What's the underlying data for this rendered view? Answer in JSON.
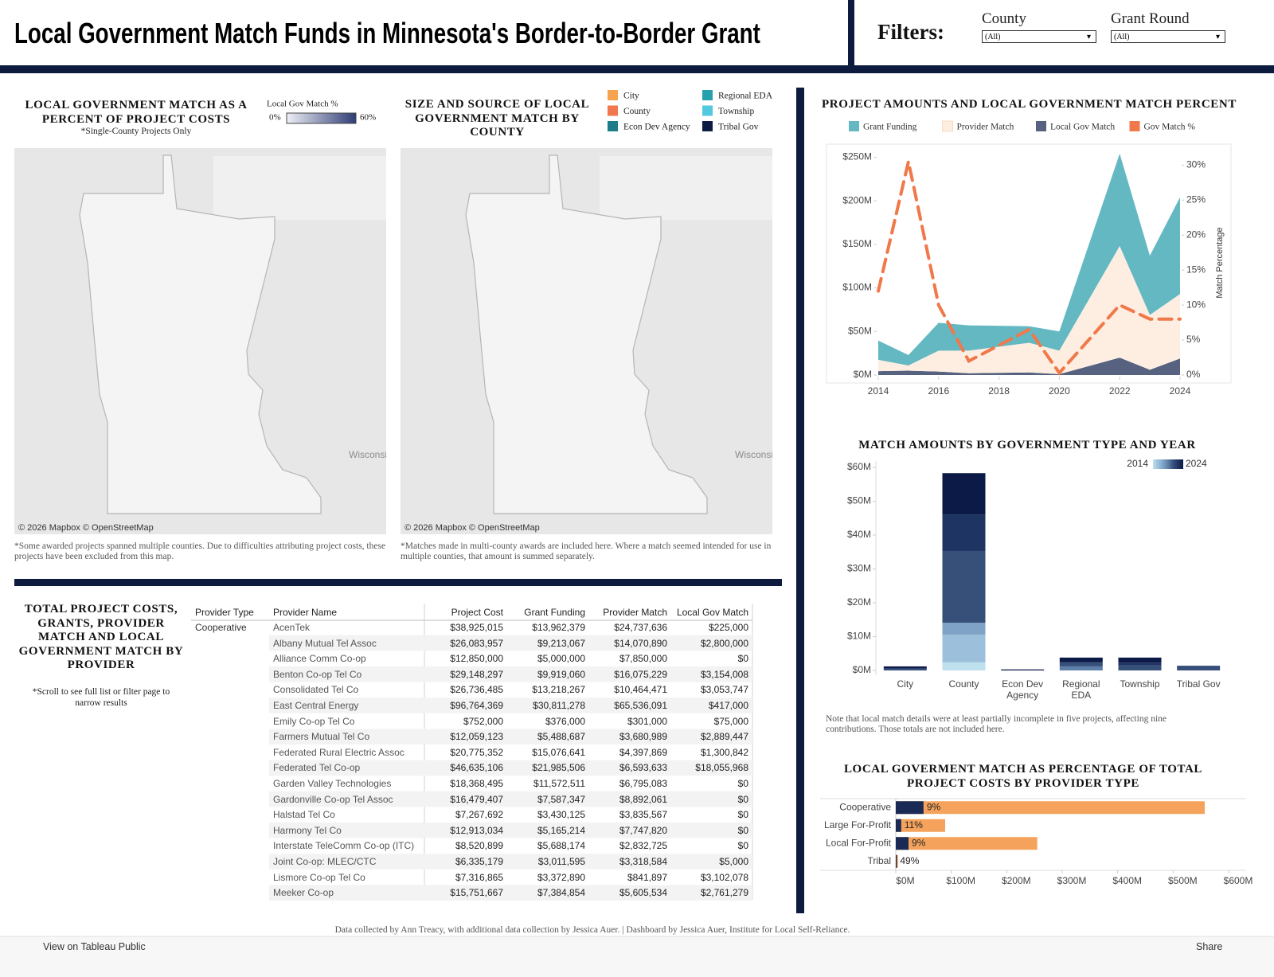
{
  "header": {
    "title": "Local Government Match Funds in Minnesota's Border-to-Border Grant",
    "filters_label": "Filters:",
    "filters": [
      {
        "label": "County",
        "value": "(All)"
      },
      {
        "label": "Grant Round",
        "value": "(All)"
      }
    ]
  },
  "maps": [
    {
      "title": "LOCAL GOVERNMENT MATCH AS A PERCENT OF PROJECT COSTS",
      "subtitle": "*Single-County Projects Only",
      "legend_title": "Local Gov Match %",
      "legend_min": "0%",
      "legend_max": "60%",
      "legend_colors": [
        "#eef0f6",
        "#2e3d76"
      ],
      "attribution": "© 2026 Mapbox © OpenStreetMap",
      "place_label": "Wisconsin",
      "note": "*Some awarded projects spanned multiple counties. Due to difficulties attributing project costs, these projects have been excluded from this map."
    },
    {
      "title": "SIZE AND SOURCE OF LOCAL GOVERNMENT MATCH BY COUNTY",
      "legend": [
        {
          "name": "City",
          "color": "#f7a24f"
        },
        {
          "name": "County",
          "color": "#f1784c"
        },
        {
          "name": "Econ Dev Agency",
          "color": "#1e7b8a"
        },
        {
          "name": "Regional EDA",
          "color": "#27a0ad"
        },
        {
          "name": "Township",
          "color": "#52c9e0"
        },
        {
          "name": "Tribal Gov",
          "color": "#0d1c44"
        }
      ],
      "attribution": "© 2026 Mapbox © OpenStreetMap",
      "place_label": "Wisconsin",
      "note": "*Matches made in multi-county awards are included here. Where a match seemed intended for use in multiple counties, that amount is summed separately."
    }
  ],
  "table": {
    "title": "TOTAL PROJECT COSTS, GRANTS, PROVIDER MATCH AND LOCAL GOVERNMENT MATCH BY PROVIDER",
    "note": "*Scroll to see full list or filter page to narrow results",
    "columns": [
      "Provider Type",
      "Provider Name",
      "Project Cost",
      "Grant Funding",
      "Provider Match",
      "Local Gov Match"
    ],
    "groups": [
      {
        "type": "Cooperative",
        "rows": [
          [
            "AcenTek",
            "$38,925,015",
            "$13,962,379",
            "$24,737,636",
            "$225,000"
          ],
          [
            "Albany Mutual Tel Assoc",
            "$26,083,957",
            "$9,213,067",
            "$14,070,890",
            "$2,800,000"
          ],
          [
            "Alliance Comm Co-op",
            "$12,850,000",
            "$5,000,000",
            "$7,850,000",
            "$0"
          ],
          [
            "Benton Co-op Tel Co",
            "$29,148,297",
            "$9,919,060",
            "$16,075,229",
            "$3,154,008"
          ],
          [
            "Consolidated Tel Co",
            "$26,736,485",
            "$13,218,267",
            "$10,464,471",
            "$3,053,747"
          ],
          [
            "East Central Energy",
            "$96,764,369",
            "$30,811,278",
            "$65,536,091",
            "$417,000"
          ],
          [
            "Emily Co-op Tel Co",
            "$752,000",
            "$376,000",
            "$301,000",
            "$75,000"
          ],
          [
            "Farmers Mutual Tel Co",
            "$12,059,123",
            "$5,488,687",
            "$3,680,989",
            "$2,889,447"
          ],
          [
            "Federated Rural Electric Assoc",
            "$20,775,352",
            "$15,076,641",
            "$4,397,869",
            "$1,300,842"
          ],
          [
            "Federated Tel Co-op",
            "$46,635,106",
            "$21,985,506",
            "$6,593,633",
            "$18,055,968"
          ],
          [
            "Garden Valley Technologies",
            "$18,368,495",
            "$11,572,511",
            "$6,795,083",
            "$0"
          ],
          [
            "Gardonville Co-op Tel Assoc",
            "$16,479,407",
            "$7,587,347",
            "$8,892,061",
            "$0"
          ],
          [
            "Halstad Tel Co",
            "$7,267,692",
            "$3,430,125",
            "$3,835,567",
            "$0"
          ],
          [
            "Harmony Tel Co",
            "$12,913,034",
            "$5,165,214",
            "$7,747,820",
            "$0"
          ],
          [
            "Interstate TeleComm Co-op (ITC)",
            "$8,520,899",
            "$5,688,174",
            "$2,832,725",
            "$0"
          ],
          [
            "Joint Co-op: MLEC/CTC",
            "$6,335,179",
            "$3,011,595",
            "$3,318,584",
            "$5,000"
          ],
          [
            "Lismore Co-op Tel Co",
            "$7,316,865",
            "$3,372,890",
            "$841,897",
            "$3,102,078"
          ],
          [
            "Meeker Co-op",
            "$15,751,667",
            "$7,384,854",
            "$5,605,534",
            "$2,761,279"
          ]
        ]
      }
    ]
  },
  "chart_data": [
    {
      "type": "area",
      "title": "PROJECT AMOUNTS AND LOCAL GOVERNMENT MATCH PERCENT",
      "stacked": true,
      "x": [
        2014,
        2015,
        2016,
        2017,
        2019,
        2020,
        2022,
        2023,
        2024
      ],
      "xlim": [
        2014,
        2024
      ],
      "xticks": [
        2014,
        2016,
        2018,
        2020,
        2022,
        2024
      ],
      "ylim": [
        0,
        265
      ],
      "yticks": [
        {
          "value": 0,
          "label": "$0M"
        },
        {
          "value": 50,
          "label": "$50M"
        },
        {
          "value": 100,
          "label": "$100M"
        },
        {
          "value": 150,
          "label": "$150M"
        },
        {
          "value": 200,
          "label": "$200M"
        },
        {
          "value": 250,
          "label": "$250M"
        }
      ],
      "y2lim": [
        0,
        33
      ],
      "y2ticks": [
        {
          "value": 0,
          "label": "0%"
        },
        {
          "value": 5,
          "label": "5%"
        },
        {
          "value": 10,
          "label": "10%"
        },
        {
          "value": 15,
          "label": "15%"
        },
        {
          "value": 20,
          "label": "20%"
        },
        {
          "value": 25,
          "label": "25%"
        },
        {
          "value": 30,
          "label": "30%"
        }
      ],
      "y2label": "Match Percentage",
      "series": [
        {
          "name": "Grant Funding",
          "color": "#63b8c2",
          "values": [
            22,
            12,
            32,
            29,
            19,
            22,
            106,
            68,
            111
          ]
        },
        {
          "name": "Provider Match",
          "color": "#fdeee1",
          "values": [
            13,
            6,
            24,
            26,
            34,
            27,
            128,
            63,
            74
          ]
        },
        {
          "name": "Local Gov Match",
          "color": "#56627f",
          "values": [
            4.5,
            5,
            4,
            2,
            3,
            1,
            20,
            6,
            19
          ]
        },
        {
          "name": "Gov Match %",
          "color": "#f0784a",
          "type": "line",
          "axis": "y2",
          "values": [
            12,
            30.5,
            10,
            2,
            6.5,
            0.3,
            10,
            8,
            8
          ]
        }
      ]
    },
    {
      "type": "bar",
      "title": "MATCH AMOUNTS BY GOVERNMENT TYPE AND YEAR",
      "stacked": true,
      "categories": [
        "City",
        "County",
        "Econ Dev Agency",
        "Regional EDA",
        "Township",
        "Tribal Gov"
      ],
      "ylim": [
        0,
        60
      ],
      "yticks": [
        {
          "value": 0,
          "label": "$0M"
        },
        {
          "value": 10,
          "label": "$10M"
        },
        {
          "value": 20,
          "label": "$20M"
        },
        {
          "value": 30,
          "label": "$30M"
        },
        {
          "value": 40,
          "label": "$40M"
        },
        {
          "value": 50,
          "label": "$50M"
        },
        {
          "value": 60,
          "label": "$60M"
        }
      ],
      "legend_labels": [
        "2014",
        "2024"
      ],
      "series": [
        {
          "color": "#bfe0ee",
          "values": [
            null,
            2.4,
            null,
            null,
            null,
            null
          ]
        },
        {
          "color": "#9cc0dc",
          "values": [
            null,
            8.2,
            null,
            null,
            null,
            null
          ]
        },
        {
          "color": "#7fa3c6",
          "values": [
            null,
            3.5,
            null,
            null,
            null,
            null
          ]
        },
        {
          "color": "#5d7fa8",
          "values": [
            null,
            null,
            null,
            1.2,
            null,
            null
          ]
        },
        {
          "color": "#36507a",
          "values": [
            0.6,
            21.2,
            null,
            1.2,
            1.5,
            1.4
          ]
        },
        {
          "color": "#1e3462",
          "values": [
            null,
            10.8,
            null,
            null,
            0.8,
            null
          ]
        },
        {
          "color": "#0c1a48",
          "values": [
            0.6,
            12.2,
            0.3,
            1.4,
            1.5,
            null
          ]
        }
      ],
      "note": "Note that local match details were at least partially incomplete in five projects, affecting nine contributions. Those totals are not included here."
    },
    {
      "type": "bar",
      "horizontal": true,
      "title": "LOCAL GOVERMENT MATCH AS PERCENTAGE OF TOTAL PROJECT COSTS BY PROVIDER TYPE",
      "categories": [
        "Cooperative",
        "Large For-Profit",
        "Local For-Profit",
        "Tribal"
      ],
      "xlim": [
        0,
        600
      ],
      "xticks": [
        {
          "value": 0,
          "label": "$0M"
        },
        {
          "value": 100,
          "label": "$100M"
        },
        {
          "value": 200,
          "label": "$200M"
        },
        {
          "value": 300,
          "label": "$300M"
        },
        {
          "value": 400,
          "label": "$400M"
        },
        {
          "value": 500,
          "label": "$500M"
        },
        {
          "value": 600,
          "label": "$600M"
        }
      ],
      "series": [
        {
          "color": "#f5a35c",
          "values": [
            557,
            89,
            255,
            4
          ]
        },
        {
          "color": "#1b2a55",
          "values": [
            50,
            9.8,
            23,
            1.96
          ]
        }
      ],
      "percent_labels": [
        "9%",
        "11%",
        "9%",
        "49%"
      ]
    }
  ],
  "footer": {
    "credit": "Data collected by Ann Treacy, with additional data collection by Jessica Auer. | Dashboard by Jessica Auer, Institute for Local Self-Reliance.",
    "toolbar": [
      "View on Tableau Public",
      "Share"
    ]
  }
}
